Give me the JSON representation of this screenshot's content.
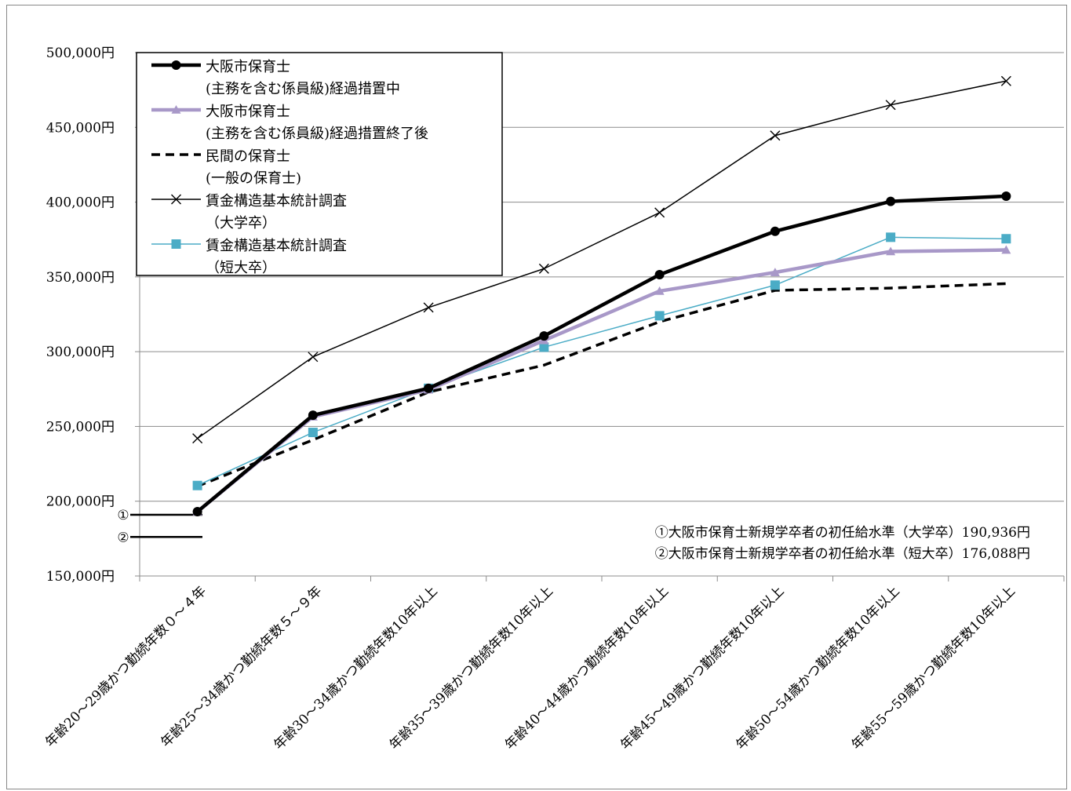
{
  "chart_data": {
    "type": "line",
    "categories": [
      "年齢20～29歳かつ勤続年数０～４年",
      "年齢25～34歳かつ勤続年数５～９年",
      "年齢30～34歳かつ勤続年数10年以上",
      "年齢35～39歳かつ勤続年数10年以上",
      "年齢40～44歳かつ勤続年数10年以上",
      "年齢45～49歳かつ勤続年数10年以上",
      "年齢50～54歳かつ勤続年数10年以上",
      "年齢55～59歳かつ勤続年数10年以上"
    ],
    "ylim": [
      150000,
      500000
    ],
    "yticks": [
      150000,
      200000,
      250000,
      300000,
      350000,
      400000,
      450000,
      500000
    ],
    "ytick_labels": [
      "150,000円",
      "200,000円",
      "250,000円",
      "300,000円",
      "350,000円",
      "400,000円",
      "450,000円",
      "500,000円"
    ],
    "grid": true,
    "legend_position": "top-left",
    "series": [
      {
        "name_lines": [
          "大阪市保育士",
          "(主務を含む係員級)経過措置中"
        ],
        "color": "#000000",
        "style": "solid-thick",
        "marker": "circle",
        "values": [
          193000,
          257500,
          275500,
          310500,
          351500,
          380500,
          400500,
          404000
        ]
      },
      {
        "name_lines": [
          "大阪市保育士",
          "(主務を含む係員級)経過措置終了後"
        ],
        "color": "#a898c8",
        "style": "solid-thick",
        "marker": "triangle",
        "values": [
          193000,
          256500,
          274500,
          307500,
          340500,
          353000,
          367000,
          368000
        ]
      },
      {
        "name_lines": [
          "民間の保育士",
          "(一般の保育士)"
        ],
        "color": "#000000",
        "style": "dashed",
        "marker": "none",
        "values": [
          210000,
          241000,
          273000,
          291000,
          320000,
          341000,
          342500,
          345500
        ]
      },
      {
        "name_lines": [
          "賃金構造基本統計調査",
          "（大学卒）"
        ],
        "color": "#000000",
        "style": "solid-thin",
        "marker": "x",
        "values": [
          242000,
          296500,
          329500,
          355500,
          393000,
          444500,
          465000,
          481000
        ]
      },
      {
        "name_lines": [
          "賃金構造基本統計調査",
          "（短大卒）"
        ],
        "color": "#4bacc6",
        "style": "solid-thin",
        "marker": "square",
        "values": [
          210500,
          246000,
          275500,
          303000,
          324000,
          344500,
          376500,
          375500
        ]
      }
    ],
    "reference_lines": [
      {
        "label": "①",
        "value": 190936
      },
      {
        "label": "②",
        "value": 176088
      }
    ],
    "notes": [
      "①大阪市保育士新規学卒者の初任給水準（大学卒）190,936円",
      "②大阪市保育士新規学卒者の初任給水準（短大卒）176,088円"
    ]
  }
}
